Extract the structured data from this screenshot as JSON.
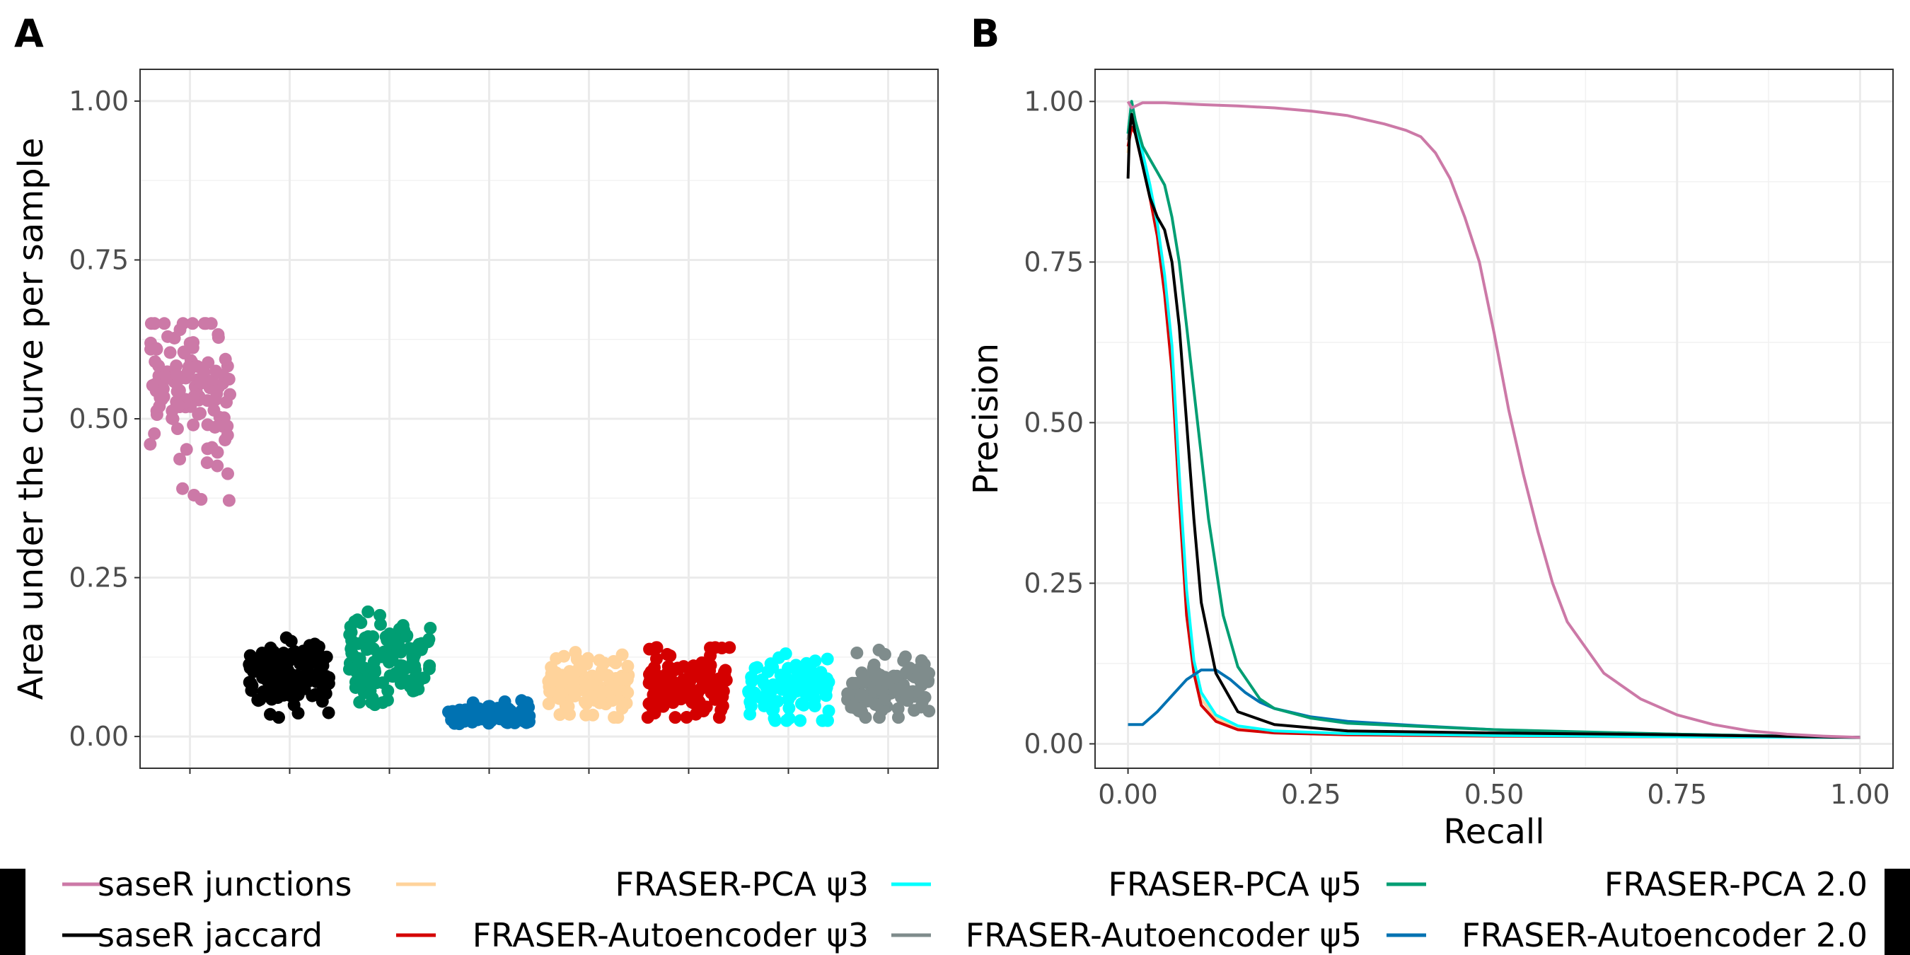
{
  "chart_data": [
    {
      "panel": "A",
      "type": "scatter",
      "ylabel": "Area under the curve per sample",
      "xlabel": "",
      "ylim": [
        -0.05,
        1.05
      ],
      "yticks": [
        "0.00",
        "0.25",
        "0.50",
        "0.75",
        "1.00"
      ],
      "grid": true,
      "series": [
        {
          "name": "saseR junctions",
          "color": "#CC79A7",
          "center": 0.55,
          "spread": 0.065,
          "min": 0.35,
          "max": 0.65,
          "n": 120
        },
        {
          "name": "saseR jaccard",
          "color": "#000000",
          "center": 0.095,
          "spread": 0.03,
          "min": 0.03,
          "max": 0.16,
          "n": 120
        },
        {
          "name": "FRASER-PCA 2.0",
          "color": "#009E73",
          "center": 0.12,
          "spread": 0.035,
          "min": 0.05,
          "max": 0.22,
          "n": 120
        },
        {
          "name": "FRASER-Autoencoder 2.0",
          "color": "#0072B2",
          "center": 0.035,
          "spread": 0.008,
          "min": 0.02,
          "max": 0.06,
          "n": 120
        },
        {
          "name": "FRASER-PCA ψ3",
          "color": "#FFD39B",
          "center": 0.08,
          "spread": 0.025,
          "min": 0.03,
          "max": 0.14,
          "n": 120
        },
        {
          "name": "FRASER-Autoencoder ψ3",
          "color": "#D40000",
          "center": 0.08,
          "spread": 0.025,
          "min": 0.03,
          "max": 0.14,
          "n": 120
        },
        {
          "name": "FRASER-PCA ψ5",
          "color": "#00FFFF",
          "center": 0.075,
          "spread": 0.025,
          "min": 0.025,
          "max": 0.15,
          "n": 120
        },
        {
          "name": "FRASER-Autoencoder ψ5",
          "color": "#7F8C8C",
          "center": 0.08,
          "spread": 0.025,
          "min": 0.03,
          "max": 0.15,
          "n": 120
        }
      ]
    },
    {
      "panel": "B",
      "type": "line",
      "xlabel": "Recall",
      "ylabel": "Precision",
      "xlim": [
        -0.045,
        1.045
      ],
      "ylim": [
        -0.038,
        1.05
      ],
      "xticks": [
        "0.00",
        "0.25",
        "0.50",
        "0.75",
        "1.00"
      ],
      "yticks": [
        "0.00",
        "0.25",
        "0.50",
        "0.75",
        "1.00"
      ],
      "grid": true,
      "series": [
        {
          "name": "saseR junctions",
          "color": "#CC79A7",
          "x": [
            0,
            0.005,
            0.02,
            0.05,
            0.1,
            0.15,
            0.2,
            0.25,
            0.3,
            0.35,
            0.38,
            0.4,
            0.42,
            0.44,
            0.46,
            0.48,
            0.5,
            0.52,
            0.54,
            0.56,
            0.58,
            0.6,
            0.65,
            0.7,
            0.75,
            0.8,
            0.85,
            0.9,
            0.95,
            1.0
          ],
          "y": [
            1.0,
            0.99,
            0.998,
            0.998,
            0.995,
            0.993,
            0.99,
            0.985,
            0.978,
            0.965,
            0.955,
            0.945,
            0.92,
            0.88,
            0.82,
            0.75,
            0.64,
            0.52,
            0.42,
            0.33,
            0.25,
            0.19,
            0.11,
            0.07,
            0.045,
            0.03,
            0.02,
            0.015,
            0.012,
            0.01
          ]
        },
        {
          "name": "saseR jaccard",
          "color": "#000000",
          "x": [
            0,
            0.002,
            0.005,
            0.01,
            0.02,
            0.03,
            0.04,
            0.05,
            0.06,
            0.07,
            0.08,
            0.09,
            0.1,
            0.12,
            0.15,
            0.2,
            0.25,
            0.3,
            0.5,
            0.75,
            1.0
          ],
          "y": [
            0.88,
            0.95,
            0.98,
            0.95,
            0.9,
            0.85,
            0.82,
            0.8,
            0.75,
            0.65,
            0.5,
            0.35,
            0.22,
            0.11,
            0.05,
            0.03,
            0.025,
            0.02,
            0.017,
            0.014,
            0.01
          ]
        },
        {
          "name": "FRASER-PCA 2.0",
          "color": "#009E73",
          "x": [
            0,
            0.005,
            0.01,
            0.02,
            0.03,
            0.04,
            0.05,
            0.06,
            0.07,
            0.08,
            0.09,
            0.1,
            0.11,
            0.13,
            0.15,
            0.18,
            0.2,
            0.25,
            0.3,
            0.5,
            0.75,
            1.0
          ],
          "y": [
            0.95,
            1.0,
            0.97,
            0.93,
            0.91,
            0.89,
            0.87,
            0.82,
            0.75,
            0.65,
            0.55,
            0.45,
            0.35,
            0.2,
            0.12,
            0.07,
            0.055,
            0.04,
            0.032,
            0.022,
            0.015,
            0.01
          ]
        },
        {
          "name": "FRASER-Autoencoder 2.0",
          "color": "#0072B2",
          "x": [
            0,
            0.01,
            0.02,
            0.04,
            0.06,
            0.08,
            0.1,
            0.12,
            0.14,
            0.16,
            0.18,
            0.2,
            0.25,
            0.3,
            0.4,
            0.5,
            0.6,
            0.75,
            1.0
          ],
          "y": [
            0.03,
            0.03,
            0.03,
            0.05,
            0.075,
            0.1,
            0.115,
            0.115,
            0.1,
            0.08,
            0.065,
            0.055,
            0.042,
            0.035,
            0.028,
            0.022,
            0.018,
            0.015,
            0.01
          ]
        },
        {
          "name": "FRASER-PCA ψ3",
          "color": "#FFD39B",
          "x": [
            0,
            0.005,
            0.01,
            0.02,
            0.03,
            0.04,
            0.05,
            0.06,
            0.07,
            0.08,
            0.09,
            0.1,
            0.12,
            0.15,
            0.2,
            0.3,
            0.5,
            0.75,
            1.0
          ],
          "y": [
            0.92,
            1.0,
            0.96,
            0.91,
            0.86,
            0.8,
            0.72,
            0.6,
            0.4,
            0.22,
            0.12,
            0.07,
            0.04,
            0.025,
            0.018,
            0.015,
            0.013,
            0.011,
            0.01
          ]
        },
        {
          "name": "FRASER-Autoencoder ψ3",
          "color": "#D40000",
          "x": [
            0,
            0.005,
            0.01,
            0.02,
            0.03,
            0.04,
            0.05,
            0.06,
            0.07,
            0.08,
            0.09,
            0.1,
            0.12,
            0.15,
            0.2,
            0.3,
            0.5,
            0.75,
            1.0
          ],
          "y": [
            0.93,
            0.96,
            0.95,
            0.9,
            0.85,
            0.79,
            0.7,
            0.58,
            0.38,
            0.2,
            0.11,
            0.06,
            0.035,
            0.022,
            0.017,
            0.014,
            0.012,
            0.011,
            0.01
          ]
        },
        {
          "name": "FRASER-PCA ψ5",
          "color": "#00FFFF",
          "x": [
            0,
            0.005,
            0.01,
            0.02,
            0.03,
            0.04,
            0.05,
            0.06,
            0.07,
            0.08,
            0.09,
            0.1,
            0.12,
            0.15,
            0.2,
            0.3,
            0.5,
            0.75,
            1.0
          ],
          "y": [
            0.95,
            1.0,
            0.97,
            0.92,
            0.87,
            0.81,
            0.73,
            0.62,
            0.42,
            0.24,
            0.13,
            0.08,
            0.045,
            0.028,
            0.02,
            0.016,
            0.013,
            0.011,
            0.01
          ]
        },
        {
          "name": "FRASER-Autoencoder ψ5",
          "color": "#7F8C8C",
          "x": [
            0,
            0.005,
            0.01,
            0.02,
            0.03,
            0.04,
            0.05,
            0.06,
            0.07,
            0.08,
            0.09,
            0.1,
            0.12,
            0.15,
            0.2,
            0.3,
            0.5,
            0.75,
            1.0
          ],
          "y": [
            0.94,
            0.99,
            0.96,
            0.91,
            0.86,
            0.8,
            0.71,
            0.59,
            0.39,
            0.21,
            0.12,
            0.07,
            0.04,
            0.026,
            0.019,
            0.015,
            0.013,
            0.011,
            0.01
          ]
        }
      ]
    }
  ],
  "panels": {
    "a_letter": "A",
    "b_letter": "B"
  },
  "legend": {
    "items": [
      {
        "label": "saseR junctions",
        "color": "#CC79A7"
      },
      {
        "label": "saseR jaccard",
        "color": "#000000"
      },
      {
        "label": "FRASER-PCA ψ3",
        "color": "#FFD39B"
      },
      {
        "label": "FRASER-Autoencoder ψ3",
        "color": "#D40000"
      },
      {
        "label": "FRASER-PCA ψ5",
        "color": "#00FFFF"
      },
      {
        "label": "FRASER-Autoencoder ψ5",
        "color": "#7F8C8C"
      },
      {
        "label": "FRASER-PCA 2.0",
        "color": "#009E73"
      },
      {
        "label": "FRASER-Autoencoder 2.0",
        "color": "#0072B2"
      }
    ]
  }
}
